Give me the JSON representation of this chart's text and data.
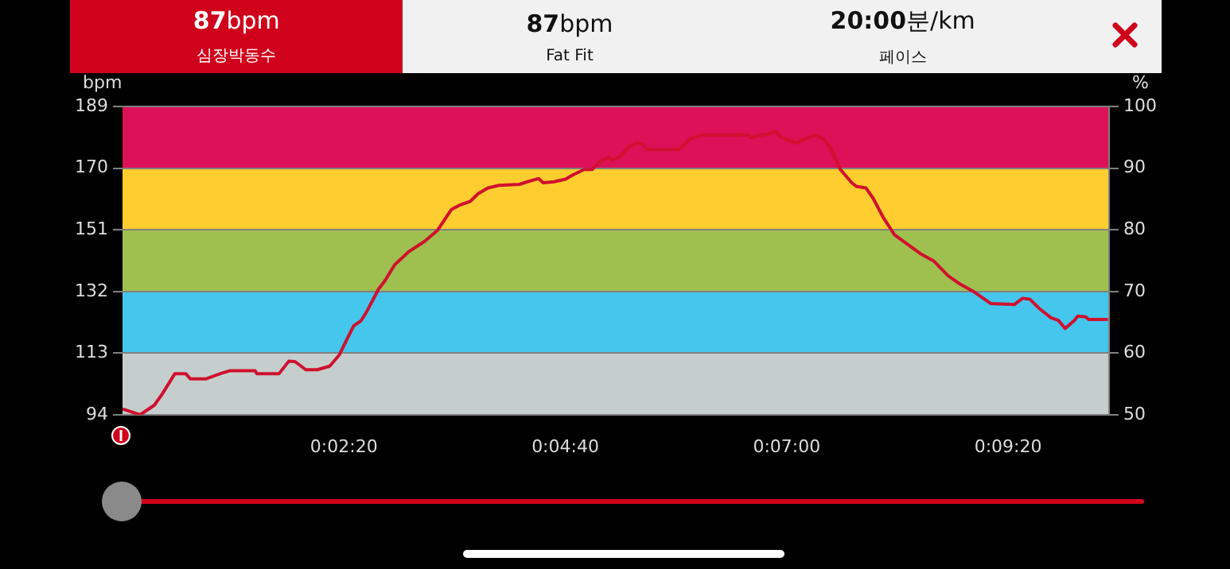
{
  "chart_data": {
    "type": "line",
    "ylabel": "bpm",
    "y2label": "%",
    "annotations": [
      "87bpm",
      "심장박동수",
      "87bpm",
      "Fat Fit",
      "20:00분/km",
      "페이스"
    ],
    "x": [
      0,
      0.0031,
      0.0056,
      0.0069,
      0.0092,
      0.0111,
      0.0119,
      0.0147,
      0.0172,
      0.0189,
      0.0233,
      0.0236,
      0.0275,
      0.0292,
      0.0303,
      0.0322,
      0.0342,
      0.0364,
      0.0381,
      0.0392,
      0.0406,
      0.0419,
      0.0428,
      0.045,
      0.0461,
      0.0478,
      0.0503,
      0.0531,
      0.0553,
      0.0578,
      0.0592,
      0.0611,
      0.0625,
      0.0642,
      0.0661,
      0.0697,
      0.0711,
      0.0731,
      0.0739,
      0.0758,
      0.0778,
      0.0792,
      0.0811,
      0.0825,
      0.0839,
      0.0853,
      0.0861,
      0.0875,
      0.0889,
      0.0903,
      0.0914,
      0.0922,
      0.0978,
      0.0997,
      0.1017,
      0.11,
      0.1103,
      0.1122,
      0.1136,
      0.1147,
      0.1156,
      0.1183,
      0.1197,
      0.1217,
      0.1231,
      0.1244,
      0.1261,
      0.1281,
      0.1289,
      0.1306,
      0.1319,
      0.1336,
      0.1356,
      0.1378,
      0.1403,
      0.1425,
      0.145,
      0.1472,
      0.1494,
      0.1525,
      0.1567,
      0.1581,
      0.1594,
      0.1611,
      0.1631,
      0.1644,
      0.1656,
      0.1672,
      0.1678,
      0.1692,
      0.1697,
      0.1731
    ],
    "series": [
      {
        "color": "#d0102e",
        "values": [
          95.8,
          94,
          97,
          100.2,
          106.7,
          106.7,
          105.1,
          105.1,
          106.7,
          107.6,
          107.6,
          106.7,
          106.7,
          110.5,
          110.4,
          107.9,
          107.9,
          109,
          112.5,
          116.5,
          121.4,
          123,
          125.5,
          132.8,
          135.3,
          140.2,
          144.3,
          147.5,
          150.8,
          157.3,
          158.6,
          159.8,
          162.2,
          163.9,
          164.7,
          165,
          165.8,
          166.8,
          165.5,
          165.8,
          166.6,
          168,
          169.6,
          169.6,
          172,
          173.3,
          172.4,
          173.7,
          176.6,
          177.7,
          177.5,
          175.8,
          175.8,
          179,
          180.2,
          180.2,
          179.4,
          180.2,
          180.5,
          181.3,
          179.6,
          177.7,
          178.8,
          180.2,
          179,
          176.1,
          169.6,
          165.5,
          164.4,
          163.9,
          160.6,
          154.9,
          149.5,
          146.7,
          143.5,
          141.4,
          136.9,
          134.2,
          132.1,
          128.3,
          128,
          129.9,
          129.6,
          126.7,
          123.9,
          123.1,
          120.6,
          123.1,
          124.4,
          124.2,
          123.4,
          123.4
        ]
      }
    ],
    "xlim": [
      0,
      0.1733
    ],
    "xticks": [
      {
        "value": 0.03889,
        "label": "0:02:20"
      },
      {
        "value": 0.07778,
        "label": "0:04:40"
      },
      {
        "value": 0.11667,
        "label": "0:07:00"
      },
      {
        "value": 0.15556,
        "label": "0:09:20"
      }
    ],
    "ylim": [
      94,
      189
    ],
    "yticks": [
      94,
      113,
      132,
      151,
      170,
      189
    ],
    "y2lim": [
      50,
      100
    ],
    "y2ticks": [
      50,
      60,
      70,
      80,
      90,
      100
    ],
    "bands": [
      {
        "axis": "y",
        "from": 94,
        "to": 113,
        "color": "#c5cecd"
      },
      {
        "axis": "y",
        "from": 113,
        "to": 132,
        "color": "#45c6ec"
      },
      {
        "axis": "y",
        "from": 132,
        "to": 151,
        "color": "#9fbf4f"
      },
      {
        "axis": "y",
        "from": 151,
        "to": 170,
        "color": "#fecd2f"
      },
      {
        "axis": "y",
        "from": 170,
        "to": 189,
        "color": "#dc1158"
      }
    ],
    "grid": "y",
    "legend": false
  }
}
